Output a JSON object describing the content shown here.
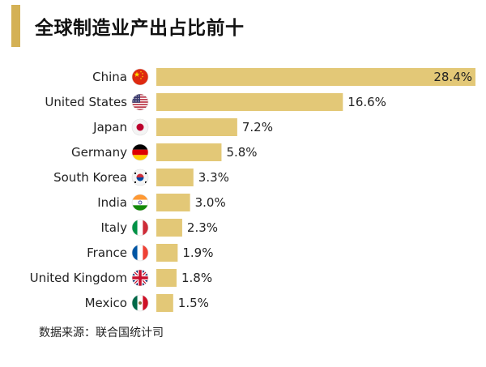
{
  "title": "全球制造业产出占比前十",
  "source": "数据来源：联合国统计司",
  "colors": {
    "accent": "#d4b155",
    "bar": "#e3c877",
    "text": "#222222"
  },
  "chart_data": {
    "type": "bar",
    "orientation": "horizontal",
    "title": "全球制造业产出占比前十",
    "categories": [
      "China",
      "United States",
      "Japan",
      "Germany",
      "South Korea",
      "India",
      "Italy",
      "France",
      "United Kingdom",
      "Mexico"
    ],
    "values": [
      28.4,
      16.6,
      7.2,
      5.8,
      3.3,
      3.0,
      2.3,
      1.9,
      1.8,
      1.5
    ],
    "value_labels": [
      "28.4%",
      "16.6%",
      "7.2%",
      "5.8%",
      "3.3%",
      "3.0%",
      "2.3%",
      "1.9%",
      "1.8%",
      "1.5%"
    ],
    "flag_icons": [
      "china-flag-icon",
      "united-states-flag-icon",
      "japan-flag-icon",
      "germany-flag-icon",
      "south-korea-flag-icon",
      "india-flag-icon",
      "italy-flag-icon",
      "france-flag-icon",
      "united-kingdom-flag-icon",
      "mexico-flag-icon"
    ],
    "xlim": [
      0,
      28.4
    ],
    "grid": false,
    "legend": "none",
    "unit": "%"
  }
}
